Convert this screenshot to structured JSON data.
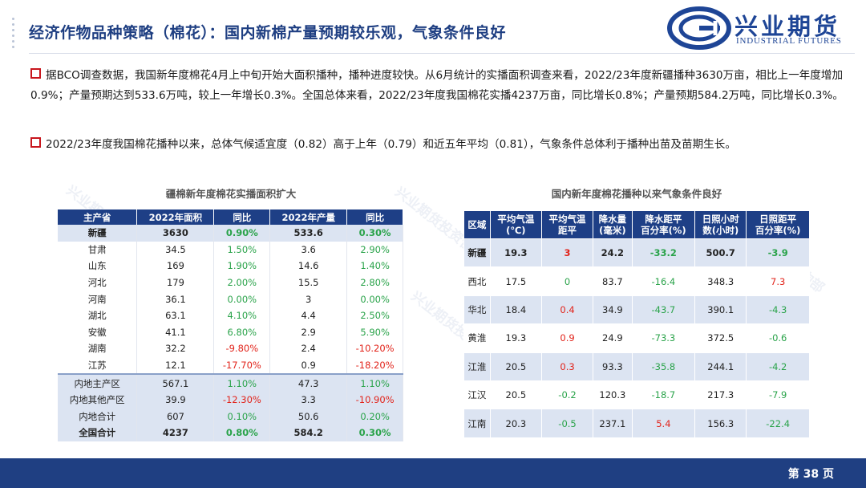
{
  "header": {
    "title": "经济作物品种策略（棉花）：国内新棉产量预期较乐观，气象条件良好",
    "brand_cn": "兴业期货",
    "brand_en": "INDUSTRIAL FUTURES"
  },
  "paragraphs": [
    "据BCO调查数据，我国新年度棉花4月上中旬开始大面积播种，播种进度较快。从6月统计的实播面积调查来看，2022/23年度新疆播种3630万亩，相比上一年度增加0.9%；产量预期达到533.6万吨，较上一年增长0.3%。全国总体来看，2022/23年度我国棉花实播4237万亩，同比增长0.8%；产量预期584.2万吨，同比增长0.3%。",
    "2022/23年度我国棉花播种以来，总体气候适宜度（0.82）高于上年（0.79）和近五年平均（0.81），气象条件总体利于播种出苗及苗期生长。"
  ],
  "table1": {
    "caption": "疆棉新年度棉花实播面积扩大",
    "headers": [
      "主产省",
      "2022年面积",
      "同比",
      "2022年产量",
      "同比"
    ],
    "rows": [
      [
        "新疆",
        "3630",
        "0.90%",
        "533.6",
        "0.30%"
      ],
      [
        "甘肃",
        "34.5",
        "1.50%",
        "3.6",
        "2.90%"
      ],
      [
        "山东",
        "169",
        "1.90%",
        "14.6",
        "1.40%"
      ],
      [
        "河北",
        "179",
        "2.00%",
        "15.5",
        "2.80%"
      ],
      [
        "河南",
        "36.1",
        "0.00%",
        "3",
        "0.00%"
      ],
      [
        "湖北",
        "63.1",
        "4.10%",
        "4.4",
        "2.50%"
      ],
      [
        "安徽",
        "41.1",
        "6.80%",
        "2.9",
        "5.90%"
      ],
      [
        "湖南",
        "32.2",
        "-9.80%",
        "2.4",
        "-10.20%"
      ],
      [
        "江苏",
        "12.1",
        "-17.70%",
        "0.9",
        "-18.20%"
      ],
      [
        "内地主产区",
        "567.1",
        "1.10%",
        "47.3",
        "1.10%"
      ],
      [
        "内地其他产区",
        "39.9",
        "-12.30%",
        "3.3",
        "-10.90%"
      ],
      [
        "内地合计",
        "607",
        "0.10%",
        "50.6",
        "0.20%"
      ],
      [
        "全国合计",
        "4237",
        "0.80%",
        "584.2",
        "0.30%"
      ]
    ]
  },
  "table2": {
    "caption": "国内新年度棉花播种以来气象条件良好",
    "headers": [
      "区域",
      "平均气温\n(℃)",
      "平均气温\n距平",
      "降水量\n(毫米)",
      "降水距平\n百分率(%)",
      "日照小时\n数(小时)",
      "日照距平\n百分率(%)"
    ],
    "rows": [
      [
        "新疆",
        "19.3",
        "3",
        "24.2",
        "-33.2",
        "500.7",
        "-3.9"
      ],
      [
        "西北",
        "17.5",
        "0",
        "83.7",
        "-16.4",
        "348.3",
        "7.3"
      ],
      [
        "华北",
        "18.4",
        "0.4",
        "34.9",
        "-43.7",
        "390.1",
        "-4.3"
      ],
      [
        "黄淮",
        "19.3",
        "0.9",
        "24.9",
        "-73.3",
        "372.5",
        "-0.6"
      ],
      [
        "江淮",
        "20.5",
        "0.3",
        "93.3",
        "-35.8",
        "244.1",
        "-4.2"
      ],
      [
        "江汉",
        "20.5",
        "-0.2",
        "120.3",
        "-18.7",
        "217.3",
        "-7.9"
      ],
      [
        "江南",
        "20.3",
        "-0.5",
        "237.1",
        "5.4",
        "156.3",
        "-22.4"
      ]
    ]
  },
  "footer": {
    "page": "第 38 页"
  },
  "watermark": "兴业期货投资咨询部"
}
